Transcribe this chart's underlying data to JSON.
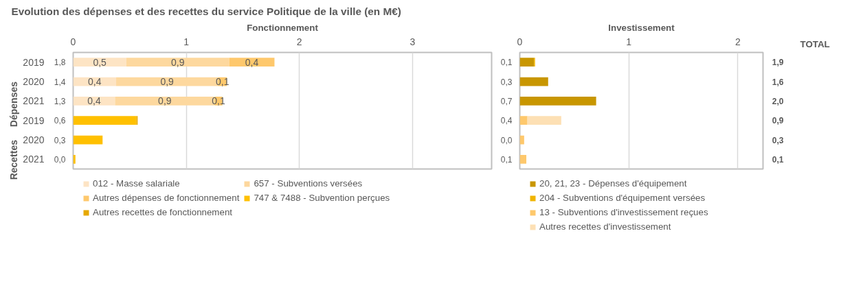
{
  "chart_data": [
    {
      "type": "bar",
      "orientation": "horizontal",
      "stacked": true,
      "title": "Evolution des dépenses et des recettes du service Politique de la ville (en M€)",
      "xlabel": "Fonctionnement",
      "categories": [
        "2019",
        "2020",
        "2021",
        "2019",
        "2020",
        "2021"
      ],
      "annotations": [
        "Dépenses",
        "Recettes"
      ],
      "xlim": [
        0,
        3.7
      ],
      "xticks": [
        0,
        1,
        2,
        3
      ],
      "grid": "x",
      "legend": "bottom",
      "totals": [
        "1,8",
        "1,4",
        "1,3",
        "0,6",
        "0,3",
        "0,0"
      ],
      "series": [
        {
          "name": "012 - Masse salariale",
          "color": "#fde4c4",
          "values": [
            0.47,
            0.38,
            0.37,
            null,
            null,
            null
          ],
          "value_labels": [
            "0,5",
            "0,4",
            "0,4",
            null,
            null,
            null
          ]
        },
        {
          "name": "657 - Subventions versées",
          "color": "#fdd89e",
          "values": [
            0.91,
            0.9,
            0.88,
            null,
            null,
            null
          ],
          "value_labels": [
            "0,9",
            "0,9",
            "0,9",
            null,
            null,
            null
          ]
        },
        {
          "name": "Autres dépenses de fonctionnement",
          "color": "#fec86c",
          "values": [
            0.4,
            0.08,
            0.07,
            null,
            null,
            null
          ],
          "value_labels": [
            "0,4",
            "0,1",
            "0,1",
            null,
            null,
            null
          ]
        },
        {
          "name": "747 & 7488 - Subvention perçues",
          "color": "#ffc000",
          "values": [
            null,
            null,
            null,
            0.56,
            0.26,
            0.02
          ]
        },
        {
          "name": "Autres recettes de fonctionnement",
          "color": "#e6a800",
          "values": [
            null,
            null,
            null,
            0.01,
            null,
            null
          ]
        }
      ]
    },
    {
      "type": "bar",
      "orientation": "horizontal",
      "stacked": true,
      "xlabel": "Investissement",
      "categories": [
        "2019",
        "2020",
        "2021",
        "2019",
        "2020",
        "2021"
      ],
      "tick_labels": "x",
      "xlim": [
        0,
        2.23
      ],
      "xticks": [
        0,
        1,
        2
      ],
      "grid": "x",
      "legend": "bottom",
      "totals": [
        "0,1",
        "0,3",
        "0,7",
        "0,4",
        "0,0",
        "0,1"
      ],
      "series": [
        {
          "name": "20, 21, 23 - Dépenses d'équipement",
          "color": "#c89600",
          "values": [
            0.13,
            0.26,
            0.7,
            null,
            null,
            null
          ]
        },
        {
          "name": "204 - Subventions d'équipement versées",
          "color": "#f0b400",
          "values": [
            0.01,
            null,
            null,
            null,
            null,
            null
          ]
        },
        {
          "name": "13 - Subventions d'investissement reçues",
          "color": "#fec86c",
          "values": [
            null,
            null,
            null,
            0.07,
            0.04,
            0.06
          ]
        },
        {
          "name": "Autres recettes d'investissement",
          "color": "#fde0b4",
          "values": [
            null,
            null,
            null,
            0.31,
            null,
            null
          ]
        }
      ]
    },
    {
      "type": "other",
      "title": "TOTAL",
      "annotations": [
        "1,9",
        "1,6",
        "2,0",
        "0,9",
        "0,3",
        "0,1"
      ]
    }
  ]
}
